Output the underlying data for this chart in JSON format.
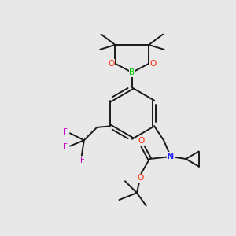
{
  "bg_color": "#e8e8e8",
  "bond_color": "#1a1a1a",
  "bond_width": 1.4,
  "figsize": [
    3.0,
    3.0
  ],
  "dpi": 100,
  "colors": {
    "B": "#00cc00",
    "O": "#ff2200",
    "N": "#2222ff",
    "F": "#cc00cc",
    "C": "#1a1a1a"
  },
  "xlim": [
    0,
    10
  ],
  "ylim": [
    0,
    10
  ]
}
